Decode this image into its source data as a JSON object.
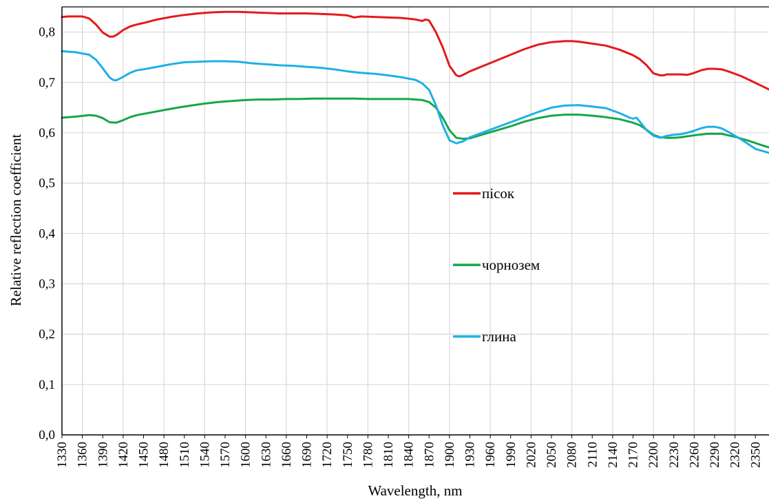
{
  "chart_data": {
    "type": "line",
    "xlabel": "Wavelength, nm",
    "ylabel": "Relative reflection coefficient",
    "xlim": [
      1330,
      2370
    ],
    "ylim": [
      0,
      0.85
    ],
    "x_ticks": [
      1330,
      1360,
      1390,
      1420,
      1450,
      1480,
      1510,
      1540,
      1570,
      1600,
      1630,
      1660,
      1690,
      1720,
      1750,
      1780,
      1810,
      1840,
      1870,
      1900,
      1930,
      1960,
      1990,
      2020,
      2050,
      2080,
      2110,
      2140,
      2170,
      2200,
      2230,
      2260,
      2290,
      2320,
      2350
    ],
    "y_ticks": [
      0,
      0.1,
      0.2,
      0.3,
      0.4,
      0.5,
      0.6,
      0.7,
      0.8
    ],
    "y_tick_labels": [
      "0,0",
      "0,1",
      "0,2",
      "0,3",
      "0,4",
      "0,5",
      "0,6",
      "0,7",
      "0,8"
    ],
    "grid": true,
    "legend_position": "center",
    "series": [
      {
        "name": "пісок",
        "color": "#e31a1c",
        "x": [
          1330,
          1340,
          1350,
          1360,
          1370,
          1380,
          1390,
          1400,
          1405,
          1410,
          1420,
          1430,
          1440,
          1450,
          1470,
          1490,
          1510,
          1530,
          1550,
          1570,
          1590,
          1610,
          1630,
          1650,
          1670,
          1690,
          1710,
          1730,
          1750,
          1760,
          1770,
          1790,
          1810,
          1830,
          1850,
          1860,
          1865,
          1870,
          1880,
          1890,
          1900,
          1910,
          1915,
          1920,
          1930,
          1950,
          1970,
          1990,
          2010,
          2030,
          2050,
          2070,
          2080,
          2090,
          2110,
          2130,
          2150,
          2170,
          2180,
          2190,
          2200,
          2210,
          2215,
          2220,
          2240,
          2250,
          2260,
          2270,
          2280,
          2290,
          2300,
          2310,
          2330,
          2350,
          2370
        ],
        "values": [
          0.83,
          0.831,
          0.831,
          0.831,
          0.827,
          0.815,
          0.799,
          0.791,
          0.791,
          0.794,
          0.804,
          0.811,
          0.815,
          0.818,
          0.825,
          0.83,
          0.834,
          0.837,
          0.839,
          0.84,
          0.84,
          0.839,
          0.838,
          0.837,
          0.837,
          0.837,
          0.836,
          0.835,
          0.833,
          0.829,
          0.831,
          0.83,
          0.829,
          0.828,
          0.825,
          0.822,
          0.825,
          0.823,
          0.8,
          0.77,
          0.733,
          0.714,
          0.712,
          0.715,
          0.722,
          0.733,
          0.744,
          0.755,
          0.766,
          0.775,
          0.78,
          0.782,
          0.782,
          0.781,
          0.777,
          0.773,
          0.765,
          0.754,
          0.746,
          0.734,
          0.718,
          0.714,
          0.714,
          0.716,
          0.716,
          0.715,
          0.719,
          0.724,
          0.727,
          0.727,
          0.726,
          0.722,
          0.712,
          0.699,
          0.686
        ]
      },
      {
        "name": "чорнозем",
        "color": "#16a64a",
        "x": [
          1330,
          1350,
          1370,
          1380,
          1390,
          1400,
          1410,
          1420,
          1430,
          1440,
          1460,
          1480,
          1500,
          1520,
          1540,
          1560,
          1580,
          1600,
          1620,
          1640,
          1660,
          1680,
          1700,
          1720,
          1740,
          1760,
          1780,
          1800,
          1820,
          1840,
          1860,
          1870,
          1880,
          1890,
          1900,
          1910,
          1920,
          1930,
          1950,
          1970,
          1990,
          2010,
          2030,
          2050,
          2070,
          2090,
          2110,
          2130,
          2150,
          2170,
          2180,
          2190,
          2200,
          2210,
          2220,
          2230,
          2240,
          2260,
          2280,
          2300,
          2320,
          2340,
          2360,
          2370
        ],
        "values": [
          0.63,
          0.632,
          0.635,
          0.634,
          0.629,
          0.621,
          0.62,
          0.625,
          0.631,
          0.635,
          0.64,
          0.645,
          0.65,
          0.654,
          0.658,
          0.661,
          0.663,
          0.665,
          0.666,
          0.666,
          0.667,
          0.667,
          0.668,
          0.668,
          0.668,
          0.668,
          0.667,
          0.667,
          0.667,
          0.667,
          0.665,
          0.661,
          0.65,
          0.63,
          0.605,
          0.59,
          0.588,
          0.589,
          0.597,
          0.605,
          0.613,
          0.622,
          0.629,
          0.634,
          0.636,
          0.636,
          0.634,
          0.631,
          0.627,
          0.62,
          0.615,
          0.606,
          0.596,
          0.591,
          0.59,
          0.59,
          0.591,
          0.595,
          0.598,
          0.598,
          0.592,
          0.584,
          0.575,
          0.571
        ]
      },
      {
        "name": "глина",
        "color": "#1fb0e6",
        "x": [
          1330,
          1350,
          1370,
          1380,
          1390,
          1400,
          1405,
          1410,
          1420,
          1430,
          1440,
          1450,
          1470,
          1490,
          1510,
          1530,
          1550,
          1570,
          1590,
          1610,
          1630,
          1650,
          1670,
          1690,
          1710,
          1730,
          1750,
          1770,
          1790,
          1810,
          1830,
          1850,
          1860,
          1870,
          1880,
          1890,
          1900,
          1910,
          1920,
          1930,
          1950,
          1970,
          1990,
          2010,
          2030,
          2050,
          2070,
          2090,
          2110,
          2130,
          2150,
          2165,
          2170,
          2175,
          2180,
          2190,
          2200,
          2210,
          2220,
          2230,
          2240,
          2250,
          2260,
          2270,
          2280,
          2290,
          2300,
          2310,
          2330,
          2350,
          2370
        ],
        "values": [
          0.762,
          0.76,
          0.755,
          0.745,
          0.728,
          0.71,
          0.705,
          0.704,
          0.711,
          0.719,
          0.724,
          0.726,
          0.731,
          0.736,
          0.74,
          0.741,
          0.742,
          0.742,
          0.741,
          0.738,
          0.736,
          0.734,
          0.733,
          0.731,
          0.729,
          0.726,
          0.722,
          0.719,
          0.717,
          0.714,
          0.71,
          0.705,
          0.698,
          0.685,
          0.655,
          0.615,
          0.585,
          0.579,
          0.583,
          0.591,
          0.601,
          0.611,
          0.621,
          0.631,
          0.641,
          0.65,
          0.654,
          0.655,
          0.652,
          0.649,
          0.639,
          0.63,
          0.628,
          0.63,
          0.622,
          0.605,
          0.594,
          0.59,
          0.594,
          0.596,
          0.597,
          0.6,
          0.604,
          0.609,
          0.612,
          0.612,
          0.609,
          0.602,
          0.586,
          0.568,
          0.56
        ]
      }
    ]
  }
}
